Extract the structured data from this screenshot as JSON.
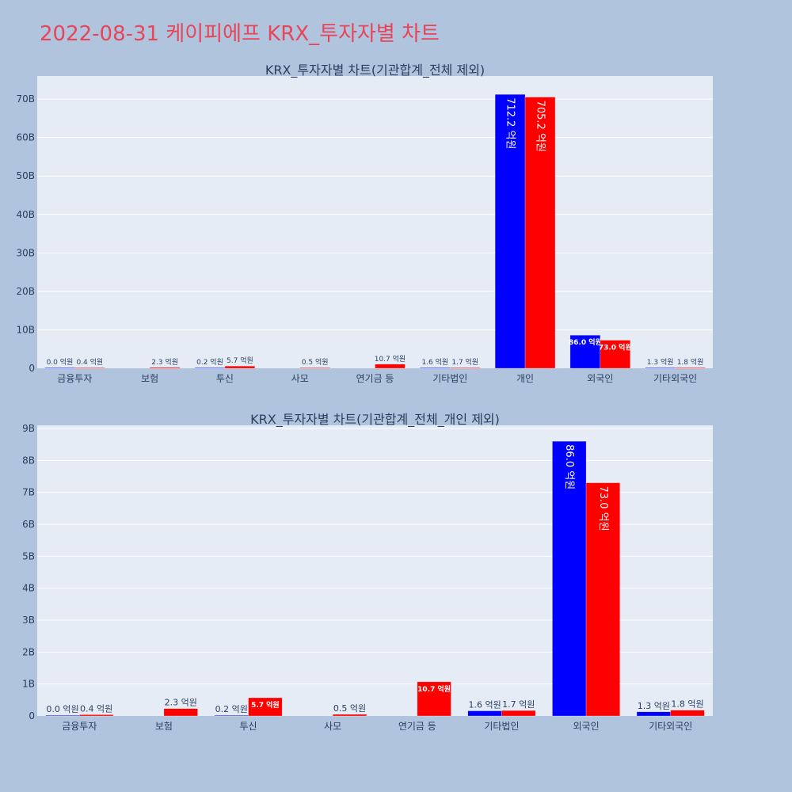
{
  "page": {
    "title": "2022-08-31 케이피에프 KRX_투자자별 차트"
  },
  "colors": {
    "background": "#b0c4de",
    "plot_bg": "#e5ecf6",
    "title": "#e8445a",
    "text": "#2a3f5f",
    "series_blue": "#0000ff",
    "series_red": "#ff0000"
  },
  "chart_data": [
    {
      "type": "bar",
      "title": "KRX_투자자별 차트(기관합계_전체 제외)",
      "categories": [
        "금융투자",
        "보험",
        "투신",
        "사모",
        "연기금 등",
        "기타법인",
        "개인",
        "외국인",
        "기타외국인"
      ],
      "series": [
        {
          "color": "#0000ff",
          "values": [
            0.0,
            null,
            0.2,
            null,
            null,
            1.6,
            712.2,
            86.0,
            1.3
          ],
          "labels": [
            "0.0 억원",
            "",
            "0.2 억원",
            "",
            "",
            "1.6 억원",
            "712.2 억원",
            "86.0 억원",
            "1.3 억원"
          ]
        },
        {
          "color": "#ff0000",
          "values": [
            0.4,
            2.3,
            5.7,
            0.5,
            10.7,
            1.7,
            705.2,
            73.0,
            1.8
          ],
          "labels": [
            "0.4 억원",
            "2.3 억원",
            "5.7 억원",
            "0.5 억원",
            "10.7 억원",
            "1.7 억원",
            "705.2 억원",
            "73.0 억원",
            "1.8 억원"
          ]
        }
      ],
      "ylim": [
        0,
        760
      ],
      "yticks": [
        0,
        100,
        200,
        300,
        400,
        500,
        600,
        700
      ],
      "ytick_labels": [
        "0",
        "10B",
        "20B",
        "30B",
        "40B",
        "50B",
        "60B",
        "70B"
      ],
      "grid": true
    },
    {
      "type": "bar",
      "title": "KRX_투자자별 차트(기관합계_전체_개인 제외)",
      "categories": [
        "금융투자",
        "보험",
        "투신",
        "사모",
        "연기금 등",
        "기타법인",
        "외국인",
        "기타외국인"
      ],
      "series": [
        {
          "color": "#0000ff",
          "values": [
            0.0,
            null,
            0.2,
            null,
            null,
            1.6,
            86.0,
            1.3
          ],
          "labels": [
            "0.0 억원",
            "",
            "0.2 억원",
            "",
            "",
            "1.6 억원",
            "86.0 억원",
            "1.3 억원"
          ]
        },
        {
          "color": "#ff0000",
          "values": [
            0.4,
            2.3,
            5.7,
            0.5,
            10.7,
            1.7,
            73.0,
            1.8
          ],
          "labels": [
            "0.4 억원",
            "2.3 억원",
            "5.7 억원",
            "0.5 억원",
            "10.7 억원",
            "1.7 억원",
            "73.0 억원",
            "1.8 억원"
          ]
        }
      ],
      "ylim": [
        0,
        91
      ],
      "yticks": [
        0,
        10,
        20,
        30,
        40,
        50,
        60,
        70,
        80,
        90
      ],
      "ytick_labels": [
        "0",
        "1B",
        "2B",
        "3B",
        "4B",
        "5B",
        "6B",
        "7B",
        "8B",
        "9B"
      ],
      "grid": true
    }
  ]
}
